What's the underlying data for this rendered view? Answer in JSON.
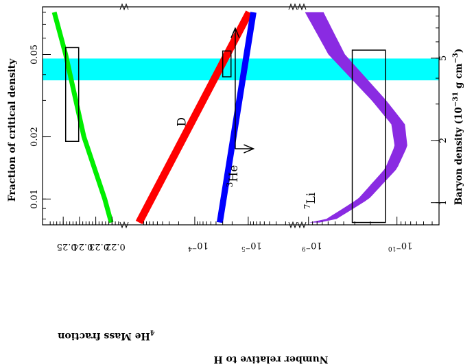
{
  "chart_data": {
    "type": "line",
    "left_axis": {
      "title": "Fraction of critical density",
      "scale": "log",
      "range": [
        0.0075,
        0.085
      ],
      "ticks": [
        {
          "value": 0.01,
          "label": "0.01"
        },
        {
          "value": 0.02,
          "label": "0.02"
        },
        {
          "value": 0.05,
          "label": "0.05"
        }
      ]
    },
    "right_axis": {
      "title": "Baryon density (10^-31 g cm^-3)",
      "title_parts": {
        "prefix": "Baryon density (10",
        "exp": "−31",
        "suffix": " g cm",
        "exp2": "−3",
        "close": ")"
      },
      "scale": "log",
      "ticks": [
        {
          "value": 1,
          "label": "1"
        },
        {
          "value": 2,
          "label": "2"
        },
        {
          "value": 5,
          "label": "5"
        }
      ]
    },
    "bottom_panels": [
      {
        "name": "He4",
        "title_sup": "4",
        "title_main": "He Mass fraction",
        "scale": "linear",
        "range": [
          0.2155,
          0.2585
        ],
        "ticks": [
          {
            "value": 0.22,
            "label": "0.22"
          },
          {
            "value": 0.23,
            "label": "0.23"
          },
          {
            "value": 0.24,
            "label": "0.24"
          },
          {
            "value": 0.25,
            "label": "0.25"
          }
        ]
      },
      {
        "name": "D_He3",
        "scale": "log",
        "range": [
          1.85e-06,
          0.0017
        ],
        "ticks": [
          {
            "value": 0.0001,
            "base": "10",
            "exp": "−4"
          },
          {
            "value": 1e-05,
            "base": "10",
            "exp": "−5"
          }
        ]
      },
      {
        "name": "Li7",
        "scale": "log",
        "range": [
          4e-11,
          1.05e-09
        ],
        "ticks": [
          {
            "value": 1e-09,
            "base": "10",
            "exp": "−9"
          },
          {
            "value": 1e-10,
            "base": "10",
            "exp": "−10"
          }
        ]
      }
    ],
    "bottom_title": "Number relative to H",
    "series": [
      {
        "name": "He4",
        "panel": 0,
        "color": "#00ee00",
        "width": 7,
        "points": [
          [
            0.0077,
            0.2205
          ],
          [
            0.01,
            0.2245
          ],
          [
            0.02,
            0.2373
          ],
          [
            0.05,
            0.2485
          ],
          [
            0.08,
            0.2555
          ]
        ]
      },
      {
        "name": "D",
        "panel": 1,
        "color": "#ff0000",
        "width": 11,
        "points": [
          [
            0.0077,
            0.0011
          ],
          [
            0.08,
            9.6e-06
          ]
        ]
      },
      {
        "name": "He3",
        "panel": 1,
        "color": "#0000ff",
        "width": 9,
        "points": [
          [
            0.0077,
            3.4e-05
          ],
          [
            0.08,
            8e-06
          ]
        ]
      },
      {
        "name": "Li7",
        "panel": 2,
        "color": "#8a2be2",
        "width_small": 15,
        "width_large": 27,
        "points": [
          [
            0.0077,
            6.35e-10
          ],
          [
            0.01,
            2.4e-10
          ],
          [
            0.014,
            1.17e-10
          ],
          [
            0.018,
            9e-11
          ],
          [
            0.023,
            9.7e-11
          ],
          [
            0.03,
            1.6e-10
          ],
          [
            0.05,
            4.8e-10
          ],
          [
            0.08,
            8.6e-10
          ]
        ]
      }
    ],
    "curve_labels": [
      {
        "name": "D",
        "text": "D",
        "panel": 1,
        "at": [
          0.0236,
          0.000149
        ]
      },
      {
        "name": "He3",
        "sup": "3",
        "text": "He",
        "panel": 1,
        "at": [
          0.0129,
          1.59e-05
        ]
      },
      {
        "name": "Li7",
        "sup": "7",
        "text": "Li",
        "panel": 2,
        "at": [
          0.0098,
          8.5e-10
        ]
      }
    ],
    "observation_boxes": [
      {
        "panel": 0,
        "omega": [
          0.019,
          0.054
        ],
        "value": [
          0.2405,
          0.2485
        ]
      },
      {
        "panel": 1,
        "omega": [
          0.039,
          0.052
        ],
        "value": [
          3e-05,
          2.1e-05
        ]
      },
      {
        "panel": 2,
        "omega": [
          0.0077,
          0.0525
        ],
        "value": [
          3.2e-10,
          1.35e-10
        ]
      }
    ],
    "arrows": [
      {
        "panel": 1,
        "value": 1.75e-05,
        "omega_from": 0.0175,
        "omega_to": 0.067
      },
      {
        "panel": 1,
        "omega": 0.0175,
        "value_from": 1.75e-05,
        "value_to": 8e-06
      }
    ],
    "highlight_band": {
      "color": "#00ffff",
      "omega": [
        0.0375,
        0.0478
      ]
    }
  }
}
